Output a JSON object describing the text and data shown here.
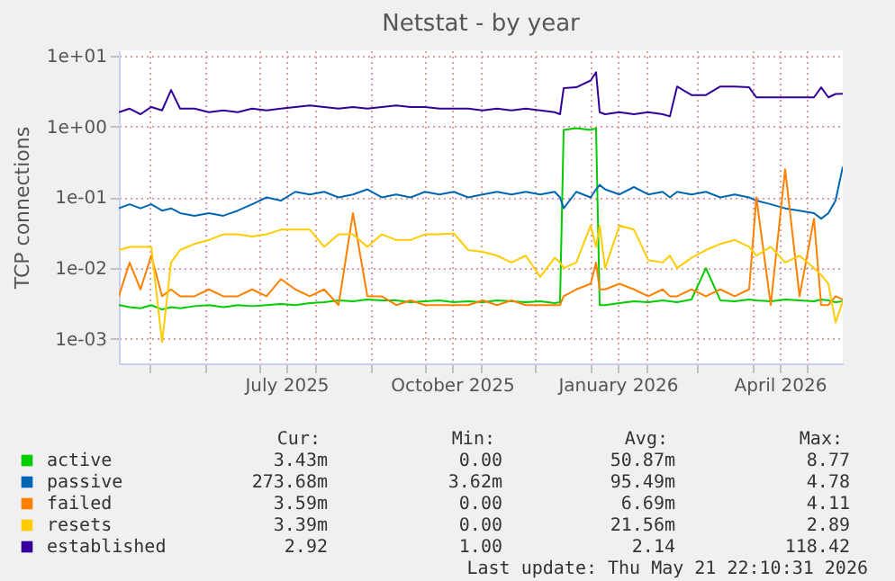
{
  "chart_data": {
    "type": "line",
    "title": "Netstat - by year",
    "ylabel": "TCP connections",
    "log": true,
    "grid": true,
    "legend": "bottom",
    "line_style": "solid",
    "marker": "none",
    "xlim": [
      "2025-04-14",
      "2026-05-21"
    ],
    "xticks": [
      {
        "value": "2025-05-01",
        "label": null
      },
      {
        "value": "2025-06-01",
        "label": null
      },
      {
        "value": "2025-07-01",
        "label": null
      },
      {
        "value": "2025-07-16",
        "label": "July 2025"
      },
      {
        "value": "2025-08-01",
        "label": null
      },
      {
        "value": "2025-09-01",
        "label": null
      },
      {
        "value": "2025-10-01",
        "label": null
      },
      {
        "value": "2025-10-16",
        "label": "October 2025"
      },
      {
        "value": "2025-11-01",
        "label": null
      },
      {
        "value": "2025-12-01",
        "label": null
      },
      {
        "value": "2026-01-01",
        "label": null
      },
      {
        "value": "2026-01-16",
        "label": "January 2026"
      },
      {
        "value": "2026-02-01",
        "label": null
      },
      {
        "value": "2026-03-01",
        "label": null
      },
      {
        "value": "2026-04-01",
        "label": null
      },
      {
        "value": "2026-04-16",
        "label": "April 2026"
      },
      {
        "value": "2026-05-01",
        "label": null
      }
    ],
    "ylim": [
      0.00045,
      12
    ],
    "yticks": [
      {
        "value": 0.001,
        "label": "1e-03"
      },
      {
        "value": 0.01,
        "label": "1e-02"
      },
      {
        "value": 0.1,
        "label": "1e-01"
      },
      {
        "value": 1,
        "label": "1e+00"
      },
      {
        "value": 10,
        "label": "1e+01"
      }
    ],
    "x": [
      "2025-04-14",
      "2025-04-20",
      "2025-04-26",
      "2025-05-02",
      "2025-05-08",
      "2025-05-13",
      "2025-05-18",
      "2025-05-26",
      "2025-06-03",
      "2025-06-11",
      "2025-06-19",
      "2025-06-27",
      "2025-07-05",
      "2025-07-13",
      "2025-07-21",
      "2025-07-29",
      "2025-08-06",
      "2025-08-14",
      "2025-08-22",
      "2025-08-30",
      "2025-09-07",
      "2025-09-15",
      "2025-09-23",
      "2025-10-01",
      "2025-10-09",
      "2025-10-17",
      "2025-10-25",
      "2025-11-02",
      "2025-11-10",
      "2025-11-18",
      "2025-11-26",
      "2025-12-04",
      "2025-12-12",
      "2025-12-15",
      "2025-12-17",
      "2025-12-24",
      "2026-01-01",
      "2026-01-04",
      "2026-01-06",
      "2026-01-09",
      "2026-01-17",
      "2026-01-25",
      "2026-02-02",
      "2026-02-10",
      "2026-02-14",
      "2026-02-18",
      "2026-02-26",
      "2026-03-06",
      "2026-03-14",
      "2026-03-22",
      "2026-03-30",
      "2026-04-03",
      "2026-04-11",
      "2026-04-19",
      "2026-04-27",
      "2026-05-05",
      "2026-05-09",
      "2026-05-13",
      "2026-05-17",
      "2026-05-21"
    ],
    "series": [
      {
        "name": "active",
        "color": "#00cc00",
        "values": [
          0.003,
          0.0028,
          0.0027,
          0.003,
          0.0026,
          0.0028,
          0.0027,
          0.0029,
          0.003,
          0.0028,
          0.003,
          0.0029,
          0.003,
          0.0031,
          0.003,
          0.0032,
          0.0033,
          0.0035,
          0.0034,
          0.0036,
          0.0035,
          0.0035,
          0.0033,
          0.0034,
          0.0035,
          0.0033,
          0.0034,
          0.0033,
          0.0035,
          0.0034,
          0.0033,
          0.0034,
          0.0032,
          0.0033,
          0.9,
          0.95,
          0.9,
          0.95,
          0.003,
          0.003,
          0.0032,
          0.0034,
          0.0033,
          0.0035,
          0.0034,
          0.0033,
          0.0036,
          0.01,
          0.0035,
          0.0034,
          0.0036,
          0.0035,
          0.0034,
          0.0036,
          0.0035,
          0.0034,
          0.0036,
          0.0035,
          0.0033,
          0.0034
        ]
      },
      {
        "name": "passive",
        "color": "#0066b3",
        "values": [
          0.07,
          0.08,
          0.07,
          0.08,
          0.065,
          0.07,
          0.06,
          0.055,
          0.06,
          0.055,
          0.065,
          0.08,
          0.1,
          0.09,
          0.12,
          0.11,
          0.12,
          0.1,
          0.11,
          0.13,
          0.1,
          0.11,
          0.1,
          0.12,
          0.11,
          0.12,
          0.1,
          0.11,
          0.12,
          0.11,
          0.12,
          0.11,
          0.12,
          0.1,
          0.07,
          0.12,
          0.1,
          0.13,
          0.15,
          0.13,
          0.11,
          0.14,
          0.11,
          0.12,
          0.1,
          0.12,
          0.11,
          0.12,
          0.1,
          0.11,
          0.1,
          0.09,
          0.08,
          0.07,
          0.065,
          0.06,
          0.05,
          0.06,
          0.09,
          0.27
        ]
      },
      {
        "name": "failed",
        "color": "#ff8000",
        "values": [
          0.004,
          0.012,
          0.005,
          0.015,
          0.004,
          0.005,
          0.004,
          0.004,
          0.005,
          0.004,
          0.004,
          0.005,
          0.004,
          0.007,
          0.005,
          0.004,
          0.005,
          0.003,
          0.06,
          0.004,
          0.004,
          0.003,
          0.0035,
          0.003,
          0.003,
          0.003,
          0.003,
          0.0035,
          0.003,
          0.0035,
          0.003,
          0.003,
          0.003,
          0.003,
          0.004,
          0.005,
          0.006,
          0.012,
          0.005,
          0.005,
          0.006,
          0.005,
          0.004,
          0.005,
          0.004,
          0.004,
          0.005,
          0.004,
          0.005,
          0.004,
          0.005,
          0.1,
          0.003,
          0.25,
          0.004,
          0.05,
          0.003,
          0.003,
          0.004,
          0.0036
        ]
      },
      {
        "name": "resets",
        "color": "#ffcc00",
        "values": [
          0.018,
          0.02,
          0.02,
          0.02,
          0.0009,
          0.012,
          0.018,
          0.022,
          0.025,
          0.03,
          0.03,
          0.028,
          0.03,
          0.035,
          0.035,
          0.035,
          0.02,
          0.03,
          0.03,
          0.02,
          0.03,
          0.025,
          0.025,
          0.03,
          0.03,
          0.031,
          0.018,
          0.017,
          0.015,
          0.012,
          0.015,
          0.0075,
          0.014,
          0.012,
          0.01,
          0.012,
          0.04,
          0.02,
          0.04,
          0.01,
          0.04,
          0.035,
          0.013,
          0.012,
          0.015,
          0.01,
          0.014,
          0.018,
          0.022,
          0.025,
          0.02,
          0.015,
          0.02,
          0.012,
          0.015,
          0.01,
          0.008,
          0.006,
          0.0017,
          0.0034
        ]
      },
      {
        "name": "established",
        "color": "#330099",
        "values": [
          1.6,
          1.8,
          1.5,
          1.9,
          1.7,
          3.3,
          1.8,
          1.8,
          1.6,
          1.7,
          1.6,
          1.8,
          1.7,
          1.8,
          1.9,
          2.0,
          1.9,
          1.8,
          1.9,
          1.8,
          1.9,
          2.0,
          1.9,
          1.9,
          1.8,
          1.8,
          1.8,
          1.7,
          1.8,
          1.7,
          1.8,
          1.7,
          1.6,
          1.5,
          3.5,
          3.6,
          4.5,
          5.9,
          1.6,
          1.5,
          1.6,
          1.5,
          1.6,
          1.5,
          1.4,
          3.7,
          2.8,
          2.8,
          3.7,
          3.7,
          3.6,
          2.6,
          2.6,
          2.6,
          2.6,
          2.6,
          3.6,
          2.6,
          2.9,
          2.92
        ]
      }
    ],
    "annotations": [
      "Cur:",
      "Min:",
      "Avg:",
      "Max:",
      "3.43m",
      "0.00",
      "50.87m",
      "8.77",
      "273.68m",
      "3.62m",
      "95.49m",
      "4.78",
      "3.59m",
      "0.00",
      "6.69m",
      "4.11",
      "3.39m",
      "0.00",
      "21.56m",
      "2.89",
      "2.92",
      "1.00",
      "2.14",
      "118.42",
      "Last update: Thu May 21 22:10:31 2026"
    ]
  }
}
